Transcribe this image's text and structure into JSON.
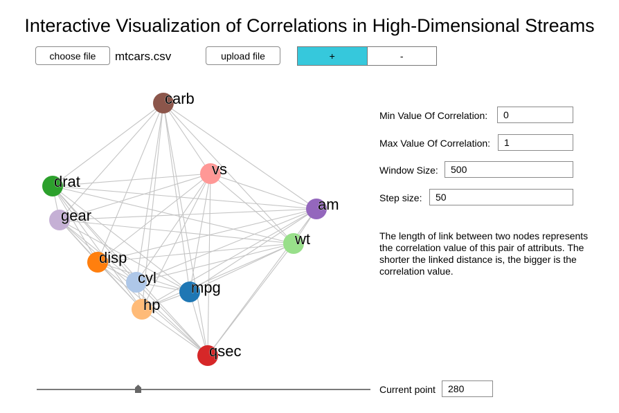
{
  "title": "Interactive Visualization of Correlations in High-Dimensional Streams",
  "toolbar": {
    "choose_file_label": "choose file",
    "file_name": "mtcars.csv",
    "upload_label": "upload file",
    "zoom_in_label": "+",
    "zoom_out_label": "-",
    "active_color": "#36c8dc"
  },
  "controls": {
    "min_label": "Min Value Of Correlation:",
    "min_value": "0",
    "max_label": "Max Value Of Correlation:",
    "max_value": "1",
    "window_label": "Window Size:",
    "window_value": "500",
    "step_label": "Step size:",
    "step_value": "50"
  },
  "description": "The length of link between two nodes represents the correlation value of this pair of attributs. The shorter the linked distance is, the bigger is the correlation value.",
  "slider": {
    "label": "Current point",
    "value": "280"
  },
  "graph": {
    "nodes": [
      {
        "id": "carb",
        "color": "#8c564b"
      },
      {
        "id": "vs",
        "color": "#ff9896"
      },
      {
        "id": "drat",
        "color": "#2ca02c"
      },
      {
        "id": "am",
        "color": "#9467bd"
      },
      {
        "id": "gear",
        "color": "#c5b0d5"
      },
      {
        "id": "wt",
        "color": "#98df8a"
      },
      {
        "id": "disp",
        "color": "#ff7f0e"
      },
      {
        "id": "cyl",
        "color": "#aec7e8"
      },
      {
        "id": "mpg",
        "color": "#1f77b4"
      },
      {
        "id": "hp",
        "color": "#ffbb78"
      },
      {
        "id": "qsec",
        "color": "#d62728"
      }
    ],
    "link_color": "#c4c4c4"
  }
}
